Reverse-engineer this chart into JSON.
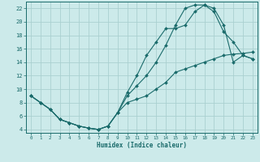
{
  "xlabel": "Humidex (Indice chaleur)",
  "ylabel": "",
  "xlim": [
    -0.5,
    23.5
  ],
  "ylim": [
    3.5,
    23
  ],
  "xticks": [
    0,
    1,
    2,
    3,
    4,
    5,
    6,
    7,
    8,
    9,
    10,
    11,
    12,
    13,
    14,
    15,
    16,
    17,
    18,
    19,
    20,
    21,
    22,
    23
  ],
  "yticks": [
    4,
    6,
    8,
    10,
    12,
    14,
    16,
    18,
    20,
    22
  ],
  "background_color": "#cceaea",
  "grid_color": "#aad0d0",
  "line_color": "#1a6b6b",
  "curve1_x": [
    0,
    1,
    2,
    3,
    4,
    5,
    6,
    7,
    8,
    9,
    10,
    11,
    12,
    13,
    14,
    15,
    16,
    17,
    18,
    19,
    20,
    21,
    22,
    23
  ],
  "curve1_y": [
    9,
    8,
    7,
    5.5,
    5,
    4.5,
    4.2,
    4,
    4.5,
    6.5,
    9.5,
    12,
    15,
    17,
    19,
    19,
    19.5,
    21.5,
    22.5,
    21.5,
    18.5,
    17,
    15,
    14.5
  ],
  "curve2_x": [
    0,
    1,
    2,
    3,
    4,
    5,
    6,
    7,
    8,
    9,
    10,
    11,
    12,
    13,
    14,
    15,
    16,
    17,
    18,
    19,
    20,
    21,
    22,
    23
  ],
  "curve2_y": [
    9,
    8,
    7,
    5.5,
    5,
    4.5,
    4.2,
    4,
    4.5,
    6.5,
    9,
    10.5,
    12,
    14,
    16.5,
    19.5,
    22,
    22.5,
    22.5,
    22,
    19.5,
    14,
    15,
    14.5
  ],
  "curve3_x": [
    0,
    1,
    2,
    3,
    4,
    5,
    6,
    7,
    8,
    9,
    10,
    11,
    12,
    13,
    14,
    15,
    16,
    17,
    18,
    19,
    20,
    21,
    22,
    23
  ],
  "curve3_y": [
    9,
    8,
    7,
    5.5,
    5,
    4.5,
    4.2,
    4,
    4.5,
    6.5,
    8,
    8.5,
    9,
    10,
    11,
    12.5,
    13,
    13.5,
    14,
    14.5,
    15,
    15.2,
    15.3,
    15.5
  ]
}
